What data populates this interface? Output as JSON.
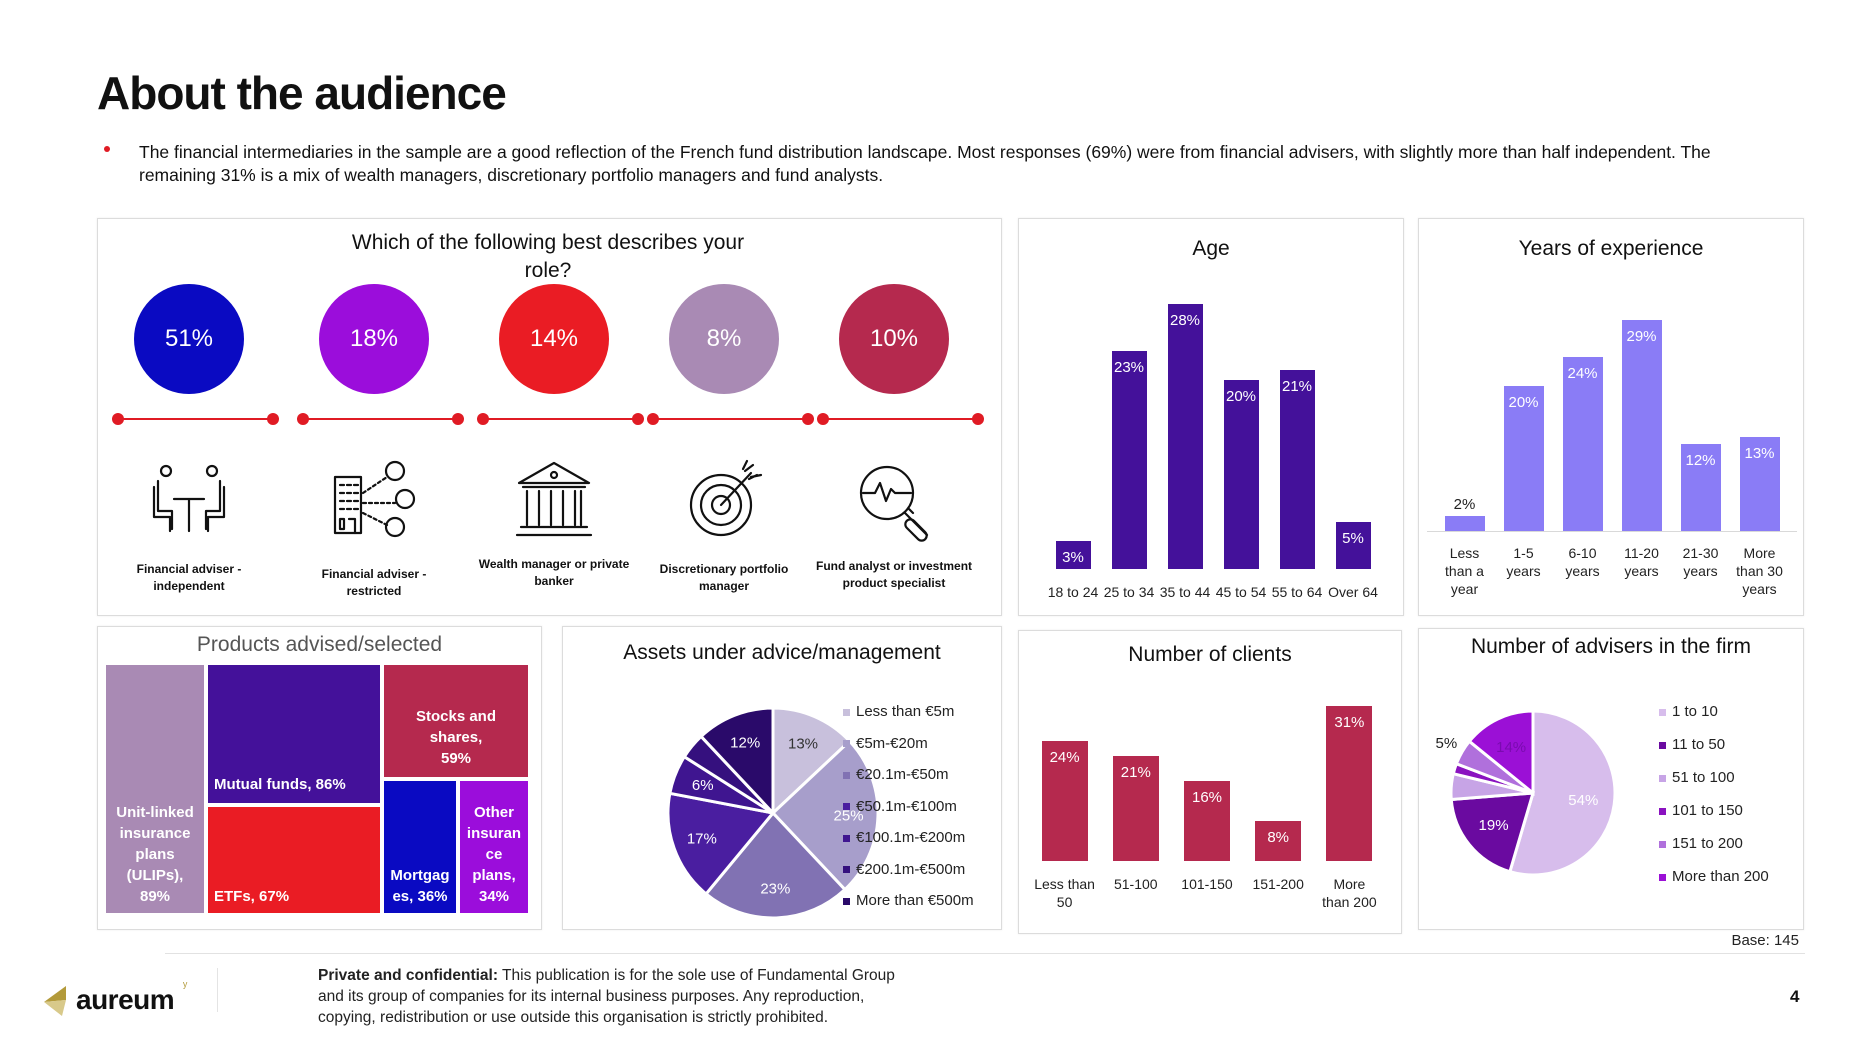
{
  "page": {
    "title": "About the audience",
    "bullet": "The financial intermediaries in the sample are a good reflection of the French fund distribution landscape. Most responses (69%) were from financial advisers, with slightly more than half independent. The remaining 31% is a mix of wealth managers, discretionary portfolio managers and fund analysts.",
    "base_note": "Base: 145",
    "page_number": "4"
  },
  "footer": {
    "logo_text": "aureum",
    "logo_mark": "ʸ",
    "confidential_bold": "Private and confidential:",
    "confidential_text": " This publication is for the sole use of Fundamental Group and its group of companies for its internal business purposes. Any reproduction, copying, redistribution or use outside this organisation is strictly prohibited."
  },
  "colors": {
    "accent_red": "#e01b24",
    "age_bar": "#44119a",
    "experience_bar": "#8a7cf6",
    "clients_bar": "#b5294e"
  },
  "chart_data": [
    {
      "id": "role",
      "type": "table",
      "title": "Which of the following best describes your role?",
      "items": [
        {
          "label": "Financial adviser - independent",
          "value": 51,
          "display": "51%",
          "color": "#0a0ac2",
          "icon": "meeting-icon"
        },
        {
          "label": "Financial adviser - restricted",
          "value": 18,
          "display": "18%",
          "color": "#9b0ddb",
          "icon": "building-network-icon"
        },
        {
          "label": "Wealth manager or private banker",
          "value": 14,
          "display": "14%",
          "color": "#ea1c24",
          "icon": "bank-icon"
        },
        {
          "label": "Discretionary portfolio manager",
          "value": 8,
          "display": "8%",
          "color": "#a98ab4",
          "icon": "target-icon"
        },
        {
          "label": "Fund analyst or investment product specialist",
          "value": 10,
          "display": "10%",
          "color": "#b5294e",
          "icon": "analysis-magnifier-icon"
        }
      ]
    },
    {
      "id": "age",
      "type": "bar",
      "title": "Age",
      "categories": [
        "18 to 24",
        "25 to 34",
        "35 to 44",
        "45 to 54",
        "55 to 64",
        "Over 64"
      ],
      "values": [
        3,
        23,
        28,
        20,
        21,
        5
      ],
      "labels": [
        "3%",
        "23%",
        "28%",
        "20%",
        "21%",
        "5%"
      ],
      "ylim": [
        0,
        30
      ],
      "xlabel": "",
      "ylabel": "",
      "grid": false
    },
    {
      "id": "experience",
      "type": "bar",
      "title": "Years of experience",
      "categories": [
        [
          "Less",
          "than a",
          "year"
        ],
        [
          "1-5",
          "years"
        ],
        [
          "6-10",
          "years"
        ],
        [
          "11-20",
          "years"
        ],
        [
          "21-30",
          "years"
        ],
        [
          "More",
          "than 30",
          "years"
        ]
      ],
      "values": [
        2,
        20,
        24,
        29,
        12,
        13
      ],
      "labels": [
        "2%",
        "20%",
        "24%",
        "29%",
        "12%",
        "13%"
      ],
      "ylim": [
        0,
        30
      ],
      "xlabel": "",
      "ylabel": "",
      "grid": false
    },
    {
      "id": "products",
      "type": "heatmap",
      "subtype": "treemap",
      "title": "Products advised/selected",
      "items": [
        {
          "label": "Unit-linked insurance plans (ULIPs), 89%",
          "value": 89,
          "color": "#a98ab4"
        },
        {
          "label": "Mutual funds, 86%",
          "value": 86,
          "color": "#44119a"
        },
        {
          "label": "ETFs, 67%",
          "value": 67,
          "color": "#ea1c24"
        },
        {
          "label": "Stocks and shares, 59%",
          "value": 59,
          "color": "#b5294e"
        },
        {
          "label": "Mortgag es, 36%",
          "value": 36,
          "color": "#0a0ac2"
        },
        {
          "label": "Other insuran ce plans, 34%",
          "value": 34,
          "color": "#9b0ddb"
        }
      ]
    },
    {
      "id": "assets",
      "type": "pie",
      "title": "Assets under advice/management",
      "slices": [
        {
          "label": "Less than €5m",
          "value": 13,
          "display": "13%",
          "color": "#c8c0dc",
          "text_color": "#333"
        },
        {
          "label": "€5m-€20m",
          "value": 25,
          "display": "25%",
          "color": "#a79ecb",
          "text_color": "#fff"
        },
        {
          "label": "€20.1m-€50m",
          "value": 23,
          "display": "23%",
          "color": "#8172b3",
          "text_color": "#fff"
        },
        {
          "label": "€50.1m-€100m",
          "value": 17,
          "display": "17%",
          "color": "#4a1ea0",
          "text_color": "#fff"
        },
        {
          "label": "€100.1m-€200m",
          "value": 6,
          "display": "6%",
          "color": "#3f1590",
          "text_color": "#fff"
        },
        {
          "label": "€200.1m-€500m",
          "value": 4,
          "display": "",
          "color": "#35107e",
          "text_color": "#fff"
        },
        {
          "label": "More than €500m",
          "value": 12,
          "display": "12%",
          "color": "#2a0a6a",
          "text_color": "#fff"
        }
      ],
      "legend": "right"
    },
    {
      "id": "clients",
      "type": "bar",
      "title": "Number of clients",
      "categories": [
        [
          "Less than",
          "50"
        ],
        [
          "51-100"
        ],
        [
          "101-150"
        ],
        [
          "151-200"
        ],
        [
          "More",
          "than 200"
        ]
      ],
      "values": [
        24,
        21,
        16,
        8,
        31
      ],
      "labels": [
        "24%",
        "21%",
        "16%",
        "8%",
        "31%"
      ],
      "ylim": [
        0,
        32
      ],
      "xlabel": "",
      "ylabel": "",
      "grid": false
    },
    {
      "id": "advisers",
      "type": "pie",
      "title": "Number of advisers in the firm",
      "slices": [
        {
          "label": "1 to 10",
          "value": 54,
          "display": "54%",
          "color": "#d7bdec",
          "text_color": "#fff"
        },
        {
          "label": "11 to 50",
          "value": 19,
          "display": "19%",
          "color": "#6a0aa0",
          "text_color": "#fff"
        },
        {
          "label": "51 to 100",
          "value": 5,
          "display": "",
          "color": "#c7a4e6",
          "text_color": "#fff"
        },
        {
          "label": "101 to 150",
          "value": 2,
          "display": "",
          "color": "#8a12c0",
          "text_color": "#fff"
        },
        {
          "label": "151 to 200",
          "value": 5,
          "display": "5%",
          "color": "#b070dc",
          "text_color": "#222"
        },
        {
          "label": "More than 200",
          "value": 14,
          "display": "14%",
          "color": "#9b10d6",
          "text_color": "#7a0bb0"
        }
      ],
      "legend": "right"
    }
  ]
}
